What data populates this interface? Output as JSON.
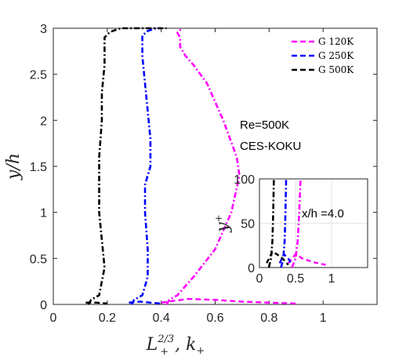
{
  "chart_data": [
    {
      "type": "line",
      "xlabel": "L+^{2/3}, k+",
      "xlabel_main": "L",
      "xlabel_sup": "2/3",
      "xlabel_sub": "+",
      "xlabel_rest": ", k",
      "xlabel_rest_sub": "+",
      "ylabel": "y/h",
      "xlim": [
        0,
        1.2
      ],
      "ylim": [
        0,
        3
      ],
      "xticks": [
        "0",
        "0.2",
        "0.4",
        "0.6",
        "0.8",
        "1"
      ],
      "xtick_values": [
        0,
        0.2,
        0.4,
        0.6,
        0.8,
        1.0
      ],
      "yticks": [
        "0",
        "0.5",
        "1",
        "1.5",
        "2",
        "2.5",
        "3"
      ],
      "ytick_values": [
        0,
        0.5,
        1,
        1.5,
        2,
        2.5,
        3
      ],
      "grid": false,
      "legend_position": "top-right",
      "annotations": [
        "Re=500K",
        "CES-KOKU"
      ],
      "series": [
        {
          "name": "G 120K",
          "color": "#ff00ff",
          "dash": "dashdot",
          "L_curve": {
            "x": [
              0.42,
              0.43,
              0.46,
              0.52,
              0.6,
              0.66,
              0.69,
              0.68,
              0.63,
              0.57,
              0.52,
              0.49,
              0.47,
              0.47,
              0.46,
              0.47,
              0.48
            ],
            "y": [
              0.0,
              0.05,
              0.1,
              0.3,
              0.6,
              1.0,
              1.4,
              1.6,
              2.0,
              2.4,
              2.6,
              2.7,
              2.8,
              2.9,
              2.95,
              2.98,
              3.0
            ]
          },
          "k_curve": {
            "x": [
              0.4,
              0.5,
              0.6,
              0.7,
              0.8,
              0.9
            ],
            "y": [
              0.02,
              0.06,
              0.05,
              0.03,
              0.02,
              0.01
            ]
          }
        },
        {
          "name": "G 250K",
          "color": "#0000ff",
          "dash": "dashdot",
          "L_curve": {
            "x": [
              0.29,
              0.3,
              0.33,
              0.35,
              0.35,
              0.34,
              0.34,
              0.36,
              0.36,
              0.35,
              0.34,
              0.33,
              0.33,
              0.33,
              0.35,
              0.38,
              0.4
            ],
            "y": [
              0.0,
              0.05,
              0.1,
              0.3,
              0.6,
              1.0,
              1.3,
              1.5,
              1.8,
              2.1,
              2.4,
              2.7,
              2.85,
              2.92,
              2.97,
              3.0,
              3.0
            ]
          },
          "k_curve": {
            "x": [
              0.28,
              0.32,
              0.36,
              0.4
            ],
            "y": [
              0.02,
              0.03,
              0.02,
              0.01
            ]
          }
        },
        {
          "name": "G 500K",
          "color": "#000000",
          "dash": "dashdot",
          "L_curve": {
            "x": [
              0.13,
              0.14,
              0.17,
              0.19,
              0.18,
              0.17,
              0.17,
              0.17,
              0.18,
              0.18,
              0.19,
              0.19,
              0.19,
              0.19,
              0.21,
              0.25,
              0.35,
              0.42
            ],
            "y": [
              0.0,
              0.05,
              0.1,
              0.4,
              0.7,
              1.0,
              1.3,
              1.6,
              2.0,
              2.3,
              2.6,
              2.8,
              2.85,
              2.9,
              2.96,
              3.0,
              3.0,
              3.0
            ]
          },
          "k_curve": {
            "x": [
              0.12,
              0.16,
              0.2
            ],
            "y": [
              0.02,
              0.02,
              0.01
            ]
          }
        }
      ]
    },
    {
      "type": "line",
      "ylabel": "y^+",
      "ylabel_main": "y",
      "ylabel_sup": "+",
      "xlim": [
        0,
        1.5
      ],
      "ylim": [
        0,
        100
      ],
      "xticks": [
        "0",
        "0.5",
        "1"
      ],
      "xtick_values": [
        0,
        0.5,
        1.0
      ],
      "yticks": [
        "0",
        "50",
        "100"
      ],
      "ytick_values": [
        0,
        50,
        100
      ],
      "grid": true,
      "annotation": "x/h =4.0",
      "series": [
        {
          "name": "G 120K",
          "color": "#ff00ff",
          "L_curve": {
            "x": [
              0.45,
              0.5,
              0.53,
              0.55,
              0.57
            ],
            "y": [
              0,
              10,
              30,
              60,
              100
            ]
          },
          "k_curve": {
            "x": [
              0.4,
              0.5,
              0.6,
              0.75,
              0.92
            ],
            "y": [
              5,
              15,
              10,
              6,
              3
            ]
          }
        },
        {
          "name": "G 250K",
          "color": "#0000ff",
          "L_curve": {
            "x": [
              0.3,
              0.33,
              0.35,
              0.36,
              0.37
            ],
            "y": [
              0,
              10,
              30,
              60,
              100
            ]
          },
          "k_curve": {
            "x": [
              0.28,
              0.34,
              0.4,
              0.45
            ],
            "y": [
              5,
              15,
              10,
              4
            ]
          }
        },
        {
          "name": "G 500K",
          "color": "#000000",
          "L_curve": {
            "x": [
              0.13,
              0.16,
              0.18,
              0.19,
              0.2
            ],
            "y": [
              0,
              10,
              30,
              60,
              100
            ]
          },
          "k_curve": {
            "x": [
              0.1,
              0.18,
              0.3,
              0.4
            ],
            "y": [
              5,
              18,
              12,
              3
            ]
          }
        }
      ]
    }
  ]
}
